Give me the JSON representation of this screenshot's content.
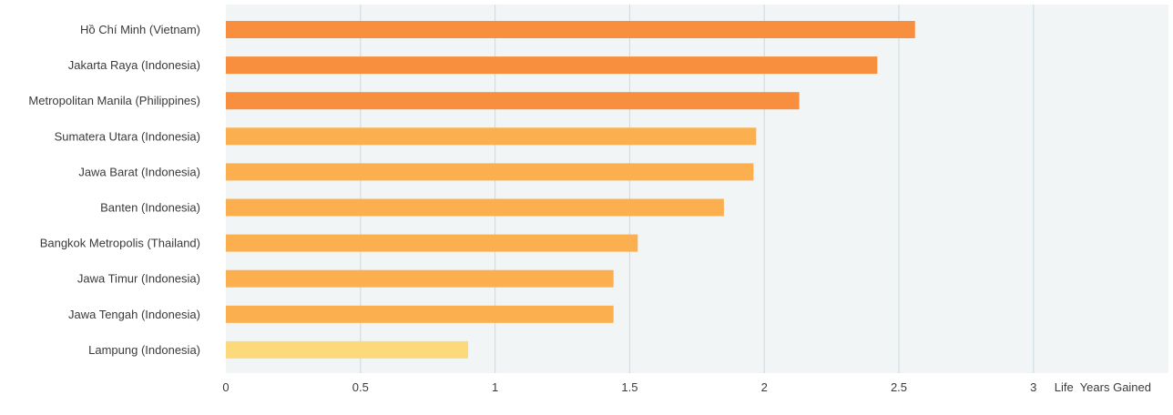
{
  "chart_data": {
    "type": "bar",
    "orientation": "horizontal",
    "categories": [
      "Hồ Chí Minh (Vietnam)",
      "Jakarta Raya (Indonesia)",
      "Metropolitan Manila (Philippines)",
      "Sumatera Utara (Indonesia)",
      "Jawa Barat (Indonesia)",
      "Banten (Indonesia)",
      "Bangkok Metropolis (Thailand)",
      "Jawa Timur (Indonesia)",
      "Jawa Tengah (Indonesia)",
      "Lampung (Indonesia)"
    ],
    "values": [
      2.56,
      2.42,
      2.13,
      1.97,
      1.96,
      1.85,
      1.53,
      1.44,
      1.44,
      0.9
    ],
    "bar_colors": [
      "#f78f3f",
      "#f78f3f",
      "#f78f3f",
      "#fbaf4f",
      "#fbaf4f",
      "#fbaf4f",
      "#fbaf4f",
      "#fbaf4f",
      "#fbaf4f",
      "#fcd97a"
    ],
    "xlim": [
      0,
      3.2
    ],
    "xticks": [
      0,
      0.5,
      1,
      1.5,
      2,
      2.5,
      3
    ],
    "xtick_labels": [
      "0",
      "0.5",
      "1",
      "1.5",
      "2",
      "2.5",
      "3"
    ],
    "xlabel": "Life  Years Gained",
    "grid": "vertical",
    "colors": {
      "plot_background": "#f2f5f6",
      "gridline": "#ccd9de",
      "text": "#3a3a3a"
    }
  }
}
